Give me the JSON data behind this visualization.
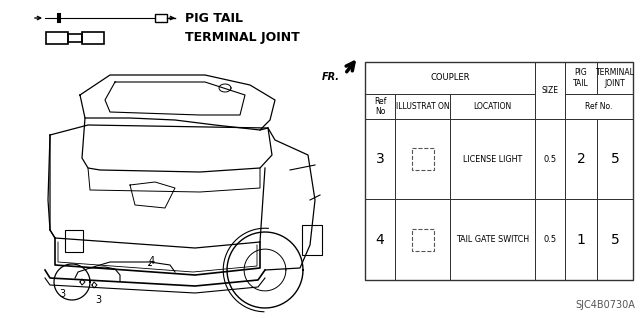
{
  "bg_color": "#ffffff",
  "title_code": "SJC4B0730A",
  "legend": [
    {
      "label": "PIG TAIL",
      "type": "pigtail"
    },
    {
      "label": "TERMINAL JOINT",
      "type": "terminal"
    }
  ],
  "table": {
    "rows": [
      {
        "ref": "3",
        "location": "LICENSE LIGHT",
        "size": "0.5",
        "pig": "2",
        "term": "5"
      },
      {
        "ref": "4",
        "location": "TAIL GATE SWITCH",
        "size": "0.5",
        "pig": "1",
        "term": "5"
      }
    ]
  }
}
